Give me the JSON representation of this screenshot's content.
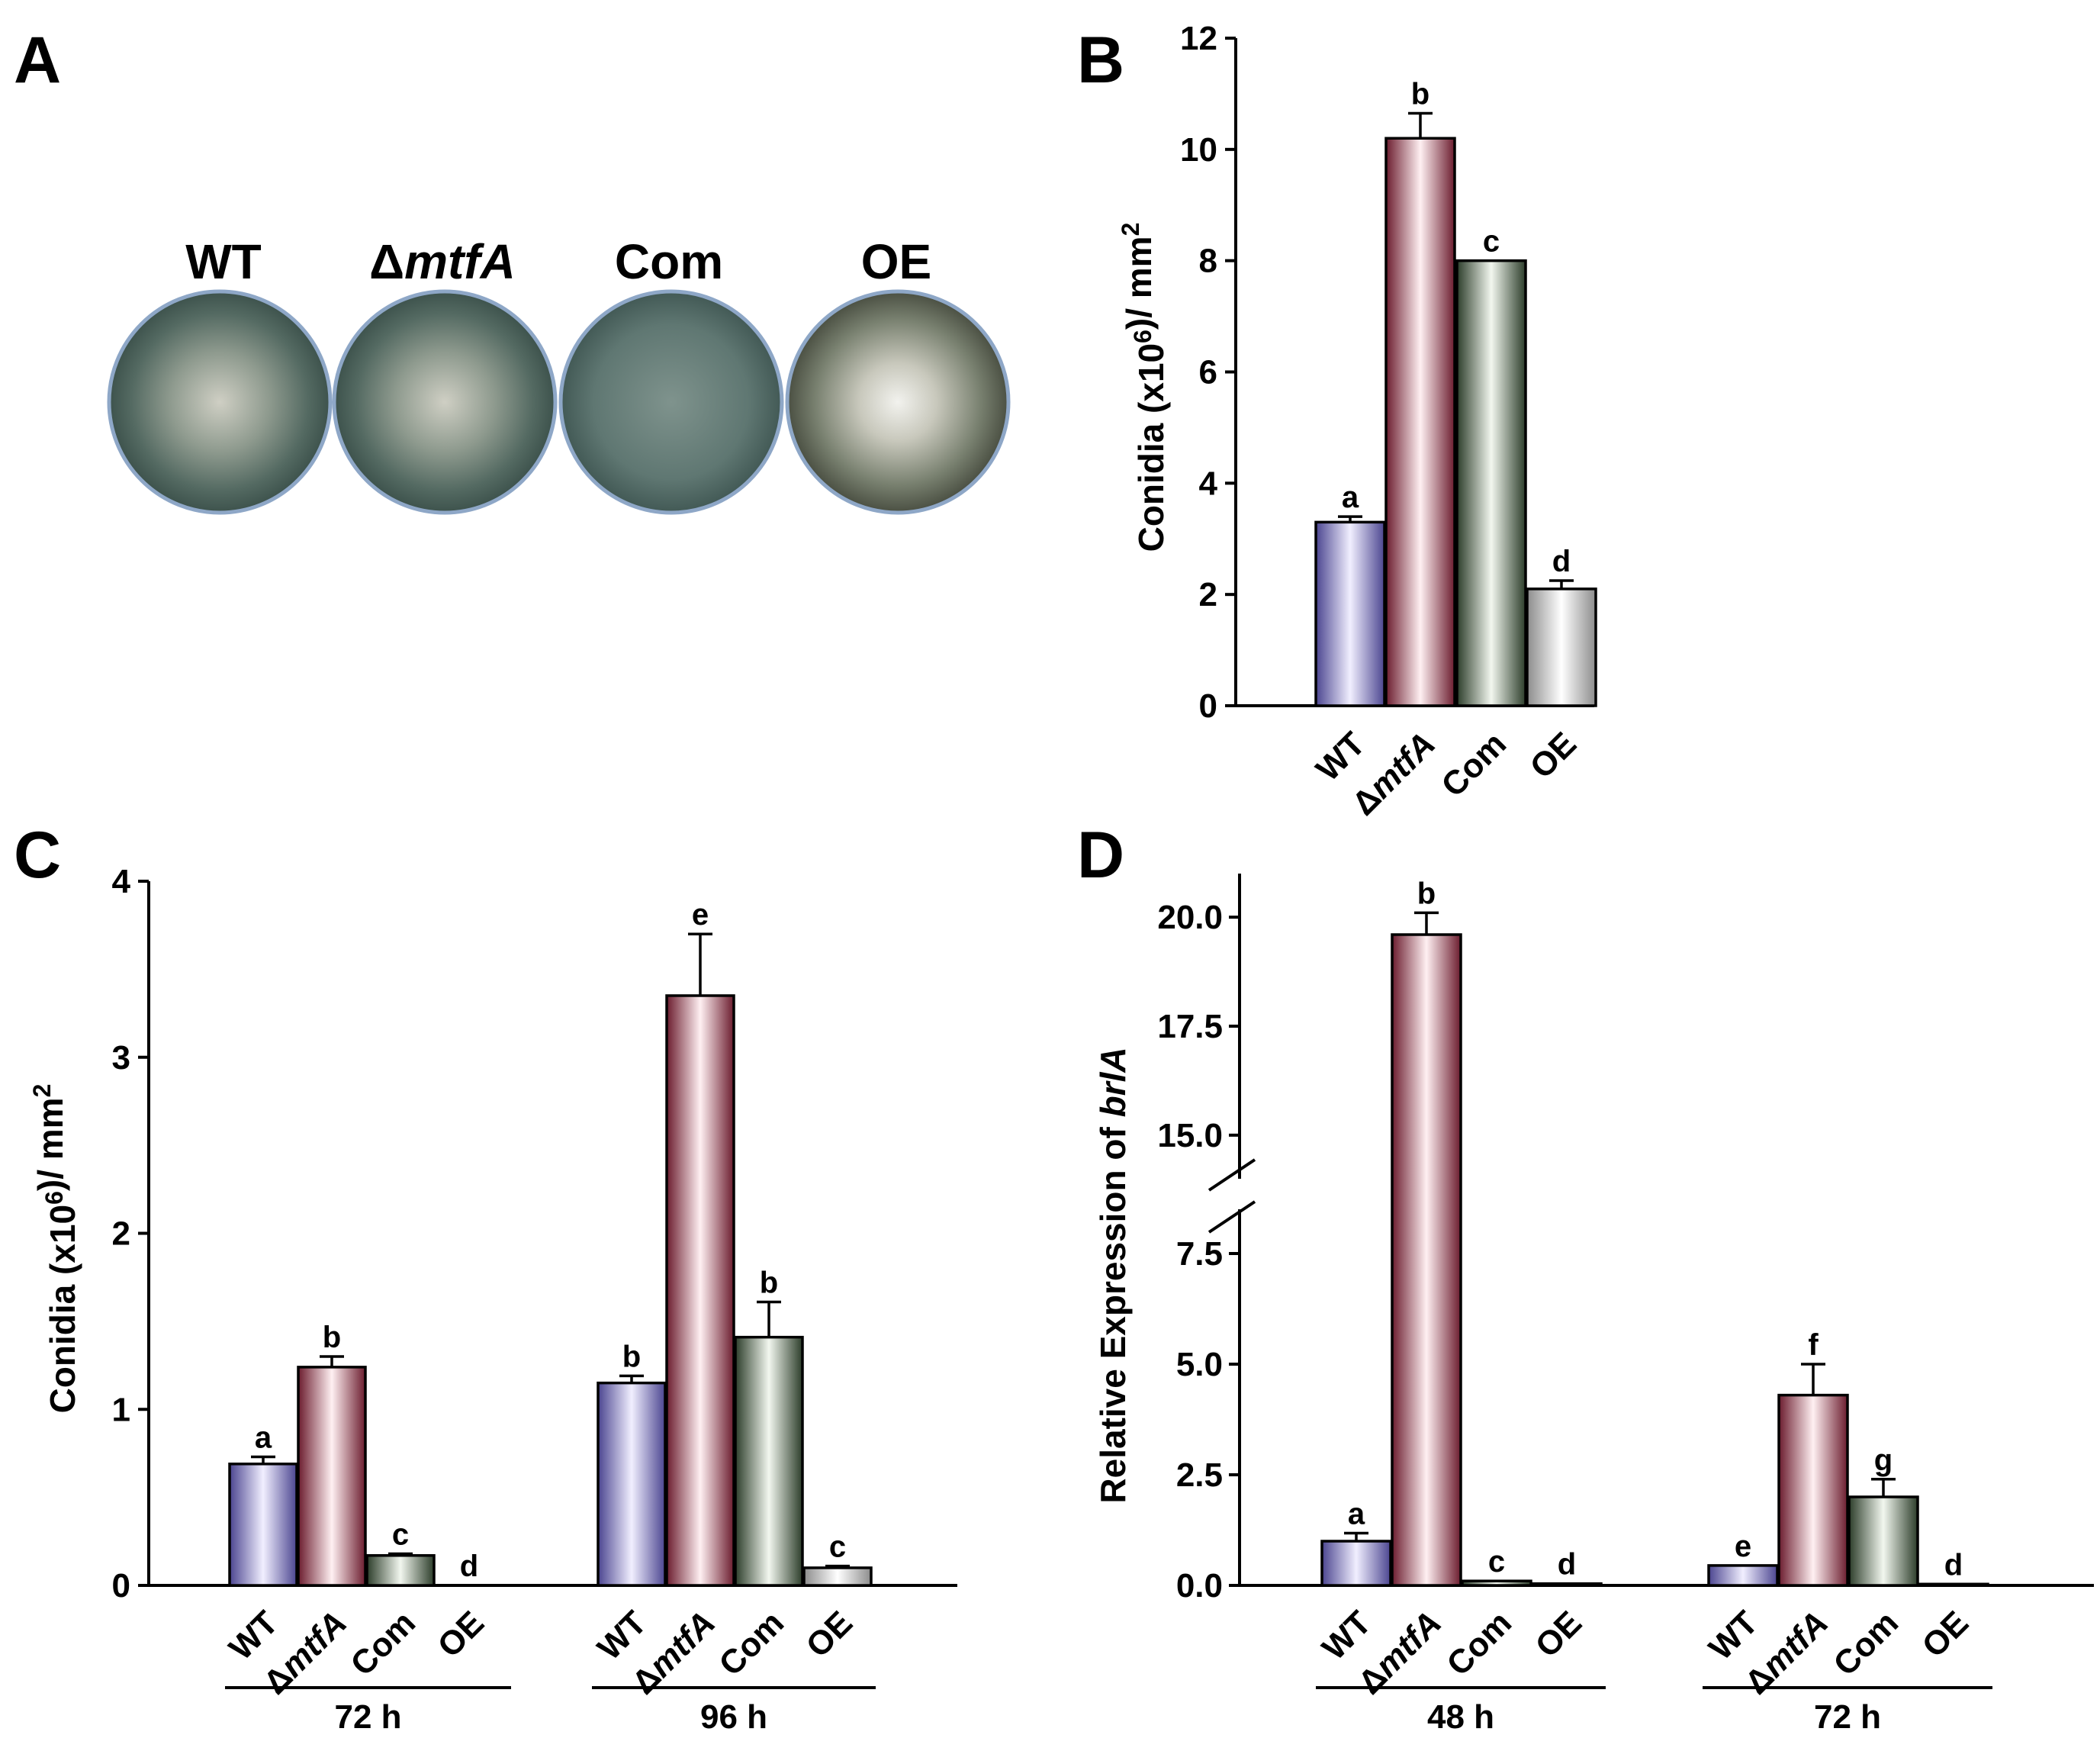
{
  "panel_a": {
    "letter": "A",
    "strains": [
      {
        "label": "WT"
      },
      {
        "label_prefix": "Δ",
        "label_italic": "mtfA"
      },
      {
        "label": "Com"
      },
      {
        "label": "OE"
      }
    ]
  },
  "chart_data": [
    {
      "panel": "B",
      "type": "bar",
      "ylabel": "Conidia (x10^6)/ mm^2",
      "ylim": [
        0,
        12
      ],
      "yticks": [
        0,
        2,
        4,
        6,
        8,
        10,
        12
      ],
      "categories": [
        "WT",
        "ΔmtfA",
        "Com",
        "OE"
      ],
      "values": [
        3.3,
        10.2,
        8.0,
        2.1
      ],
      "errors": [
        0.1,
        0.45,
        0.0,
        0.15
      ],
      "letters": [
        "a",
        "b",
        "c",
        "d"
      ]
    },
    {
      "panel": "C",
      "type": "bar",
      "ylabel": "Conidia (x10^6)/ mm^2",
      "ylim": [
        0,
        4
      ],
      "yticks": [
        0,
        1,
        2,
        3,
        4
      ],
      "groups": [
        "72 h",
        "96 h"
      ],
      "categories": [
        "WT",
        "ΔmtfA",
        "Com",
        "OE"
      ],
      "series": [
        {
          "group": "72 h",
          "values": [
            0.69,
            1.24,
            0.17,
            0.0
          ],
          "errors": [
            0.04,
            0.06,
            0.01,
            0.0
          ],
          "letters": [
            "a",
            "b",
            "c",
            "d"
          ]
        },
        {
          "group": "96 h",
          "values": [
            1.15,
            3.35,
            1.41,
            0.1
          ],
          "errors": [
            0.04,
            0.35,
            0.2,
            0.01
          ],
          "letters": [
            "b",
            "e",
            "b",
            "c"
          ]
        }
      ]
    },
    {
      "panel": "D",
      "type": "bar",
      "ylabel": "Relative Expression of brlA",
      "axis_break": [
        8.5,
        14.0
      ],
      "yticks_lower": [
        0.0,
        2.5,
        5.0,
        7.5
      ],
      "yticks_upper": [
        15.0,
        17.5,
        20.0
      ],
      "groups": [
        "48 h",
        "72 h"
      ],
      "categories": [
        "WT",
        "ΔmtfA",
        "Com",
        "OE"
      ],
      "series": [
        {
          "group": "48 h",
          "values": [
            1.0,
            19.6,
            0.1,
            0.04
          ],
          "errors": [
            0.18,
            0.5,
            0.0,
            0.0
          ],
          "letters": [
            "a",
            "b",
            "c",
            "d"
          ]
        },
        {
          "group": "72 h",
          "values": [
            0.45,
            4.3,
            2.0,
            0.03
          ],
          "errors": [
            0.0,
            0.7,
            0.4,
            0.0
          ],
          "letters": [
            "e",
            "f",
            "g",
            "d"
          ]
        }
      ]
    }
  ]
}
